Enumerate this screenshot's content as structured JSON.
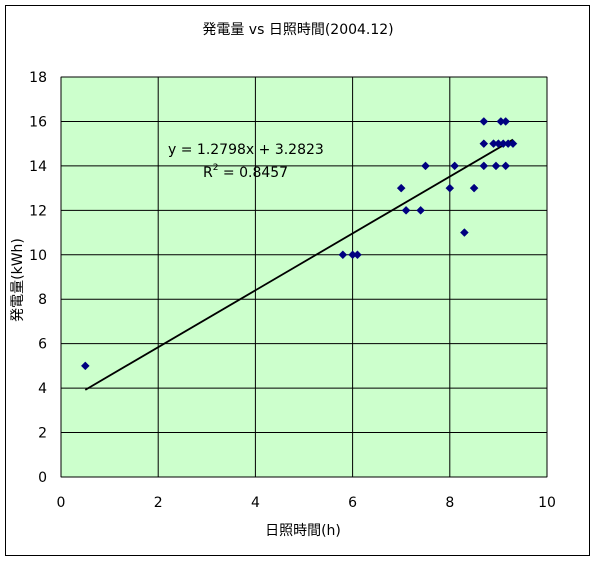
{
  "chart_data": {
    "type": "scatter",
    "title": "発電量 vs 日照時間(2004.12)",
    "xlabel": "日照時間(h)",
    "ylabel": "発電量(kWh)",
    "xlim": [
      0,
      10
    ],
    "ylim": [
      0,
      18
    ],
    "xticks": [
      0,
      2,
      4,
      6,
      8,
      10
    ],
    "yticks": [
      0,
      2,
      4,
      6,
      8,
      10,
      12,
      14,
      16,
      18
    ],
    "grid": true,
    "legend": "none",
    "colors": {
      "plot_bg": "#ccffcc",
      "marker": "#000080",
      "trend": "#000000",
      "grid": "#000000"
    },
    "points": [
      {
        "x": 0.5,
        "y": 5
      },
      {
        "x": 5.8,
        "y": 10
      },
      {
        "x": 6.0,
        "y": 10
      },
      {
        "x": 6.1,
        "y": 10
      },
      {
        "x": 7.0,
        "y": 13
      },
      {
        "x": 7.1,
        "y": 12
      },
      {
        "x": 7.4,
        "y": 12
      },
      {
        "x": 7.5,
        "y": 14
      },
      {
        "x": 8.0,
        "y": 13
      },
      {
        "x": 8.1,
        "y": 14
      },
      {
        "x": 8.3,
        "y": 11
      },
      {
        "x": 8.5,
        "y": 13
      },
      {
        "x": 8.7,
        "y": 14
      },
      {
        "x": 8.7,
        "y": 15
      },
      {
        "x": 8.7,
        "y": 16
      },
      {
        "x": 8.9,
        "y": 15
      },
      {
        "x": 8.95,
        "y": 14
      },
      {
        "x": 9.0,
        "y": 15
      },
      {
        "x": 9.05,
        "y": 16
      },
      {
        "x": 9.1,
        "y": 15
      },
      {
        "x": 9.15,
        "y": 16
      },
      {
        "x": 9.15,
        "y": 14
      },
      {
        "x": 9.2,
        "y": 15
      },
      {
        "x": 9.3,
        "y": 15
      }
    ],
    "trendline": {
      "slope": 1.2798,
      "intercept": 3.2823,
      "x_range": [
        0.5,
        9.3
      ]
    },
    "equation": {
      "line1": "y = 1.2798x + 3.2823",
      "r2_prefix": "R",
      "r2_sup": "2",
      "r2_value": " = 0.8457"
    }
  }
}
